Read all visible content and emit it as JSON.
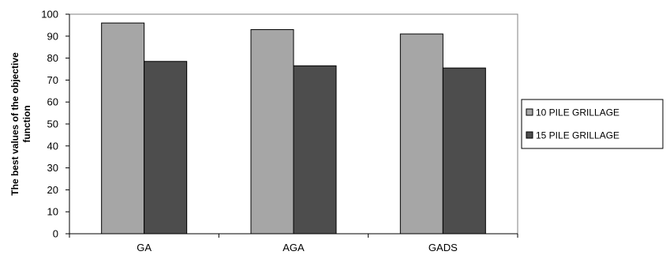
{
  "chart_data": {
    "type": "bar",
    "title": "",
    "xlabel": "",
    "ylabel": "The best values of the objective function",
    "ylim": [
      0,
      100
    ],
    "yticks": [
      0,
      10,
      20,
      30,
      40,
      50,
      60,
      70,
      80,
      90,
      100
    ],
    "categories": [
      "GA",
      "AGA",
      "GADS"
    ],
    "series": [
      {
        "name": "10 PILE GRILLAGE",
        "values": [
          96,
          93,
          91
        ],
        "color": "#a6a6a6"
      },
      {
        "name": "15 PILE GRILLAGE",
        "values": [
          78.5,
          76.5,
          75.5
        ],
        "color": "#4d4d4d"
      }
    ],
    "grid": false,
    "legend_position": "right"
  }
}
